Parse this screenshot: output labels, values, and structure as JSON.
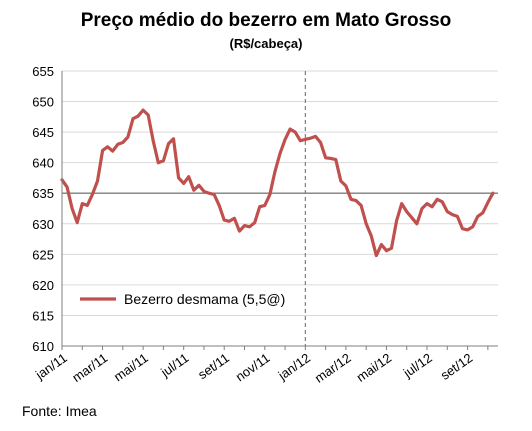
{
  "chart_data": {
    "type": "line",
    "title": "Preço médio do bezerro em Mato Grosso",
    "subtitle": "(R$/cabeça)",
    "source": "Fonte: Imea",
    "ylim": [
      610,
      655
    ],
    "yticks": [
      610,
      615,
      620,
      625,
      630,
      635,
      640,
      645,
      650,
      655
    ],
    "xticks": [
      "jan/11",
      "mar/11",
      "mai/11",
      "jul/11",
      "set/11",
      "nov/11",
      "jan/12",
      "mar/12",
      "mai/12",
      "jul/12",
      "set/12"
    ],
    "legend_position": "inside-lower-left",
    "reference_line_y": 635,
    "vertical_marker": "jan/12",
    "colors": {
      "series": "#c0504d",
      "reference": "#7f7f7f",
      "grid": "#d9d9d9"
    },
    "series": [
      {
        "name": "Bezerro desmama (5,5@)",
        "x": [
          0,
          0.25,
          0.5,
          0.75,
          1.0,
          1.25,
          1.5,
          1.75,
          2.0,
          2.25,
          2.5,
          2.75,
          3.0,
          3.25,
          3.5,
          3.75,
          4.0,
          4.25,
          4.5,
          4.75,
          5.0,
          5.25,
          5.5,
          5.75,
          6.0,
          6.25,
          6.5,
          6.75,
          7.0,
          7.25,
          7.5,
          7.75,
          8.0,
          8.25,
          8.5,
          8.75,
          9.0,
          9.25,
          9.5,
          9.75,
          10.0,
          10.25,
          10.5,
          10.75,
          11.0,
          11.25,
          11.5,
          11.75,
          12.0,
          12.25,
          12.5,
          12.75,
          13.0,
          13.25,
          13.5,
          13.75,
          14.0,
          14.25,
          14.5,
          14.75,
          15.0,
          15.25,
          15.5,
          15.75,
          16.0,
          16.25,
          16.5,
          16.75,
          17.0,
          17.25,
          17.5,
          17.75,
          18.0,
          18.25,
          18.5,
          18.75,
          19.0,
          19.25,
          19.5,
          19.75,
          20.0,
          20.25,
          20.5,
          20.75,
          21.0,
          21.25
        ],
        "values": [
          637.2,
          636.0,
          632.5,
          630.2,
          633.3,
          633.0,
          634.8,
          637.0,
          642.0,
          642.6,
          641.9,
          643.0,
          643.3,
          644.2,
          647.2,
          647.6,
          648.6,
          647.8,
          643.5,
          640.0,
          640.3,
          643.1,
          643.9,
          637.5,
          636.6,
          637.7,
          635.5,
          636.3,
          635.3,
          635.0,
          634.8,
          633.0,
          630.6,
          630.4,
          630.9,
          628.8,
          629.7,
          629.5,
          630.2,
          632.8,
          633.0,
          634.8,
          638.5,
          641.5,
          643.8,
          645.5,
          645.0,
          643.6,
          643.8,
          644.0,
          644.3,
          643.3,
          640.8,
          640.7,
          640.5,
          637.0,
          636.2,
          634.0,
          633.8,
          633.0,
          630.0,
          628.0,
          624.8,
          626.6,
          625.6,
          626.0,
          630.5,
          633.3,
          632.0,
          631.0,
          630.0,
          632.5,
          633.3,
          632.8,
          634.0,
          633.6,
          632.0,
          631.5,
          631.2,
          629.2,
          629.0,
          629.5,
          631.2,
          631.8,
          633.5,
          635.0
        ]
      }
    ]
  }
}
